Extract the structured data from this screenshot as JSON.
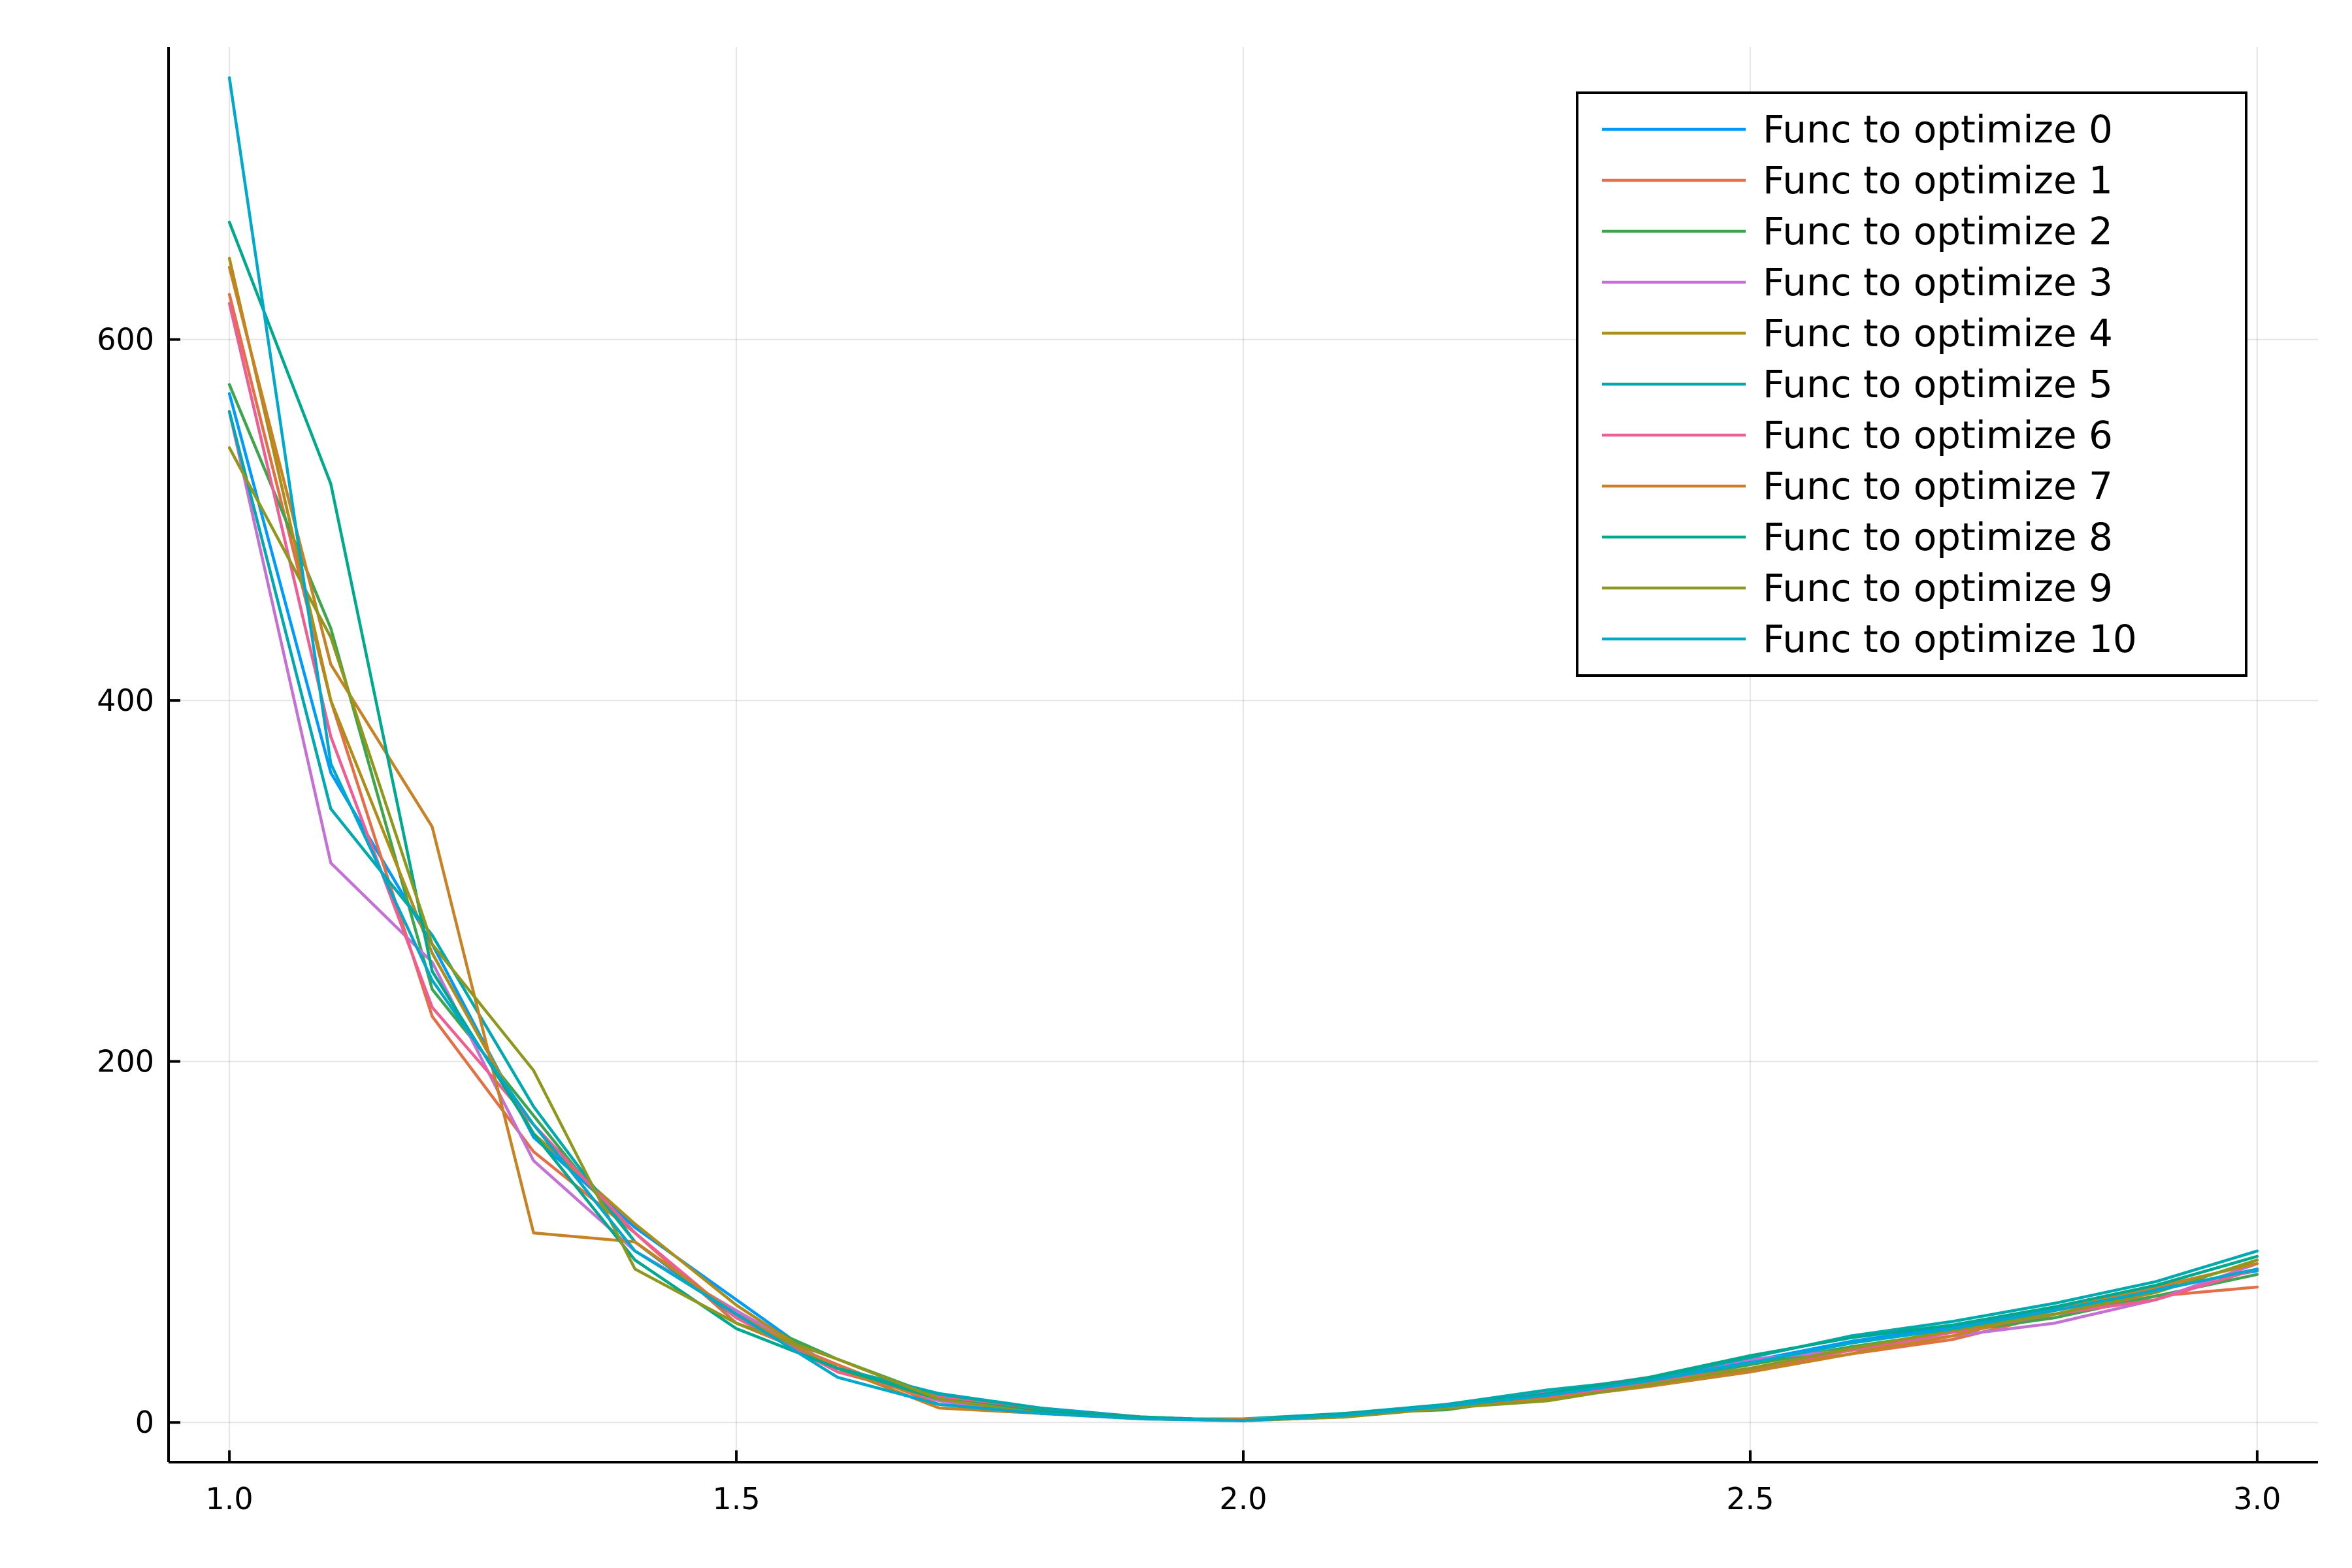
{
  "chart_data": {
    "type": "line",
    "title": "",
    "xlabel": "",
    "ylabel": "",
    "xlim": [
      0.94,
      3.06
    ],
    "ylim": [
      -22,
      762
    ],
    "x_ticks": [
      1.0,
      1.5,
      2.0,
      2.5,
      3.0
    ],
    "x_tick_labels": [
      "1.0",
      "1.5",
      "2.0",
      "2.5",
      "3.0"
    ],
    "y_ticks": [
      0,
      200,
      400,
      600
    ],
    "y_tick_labels": [
      "0",
      "200",
      "400",
      "600"
    ],
    "grid": true,
    "legend_position": "top-right",
    "x": [
      1.0,
      1.1,
      1.2,
      1.3,
      1.4,
      1.5,
      1.6,
      1.7,
      1.8,
      1.9,
      2.0,
      2.1,
      2.2,
      2.3,
      2.4,
      2.5,
      2.6,
      2.7,
      2.8,
      2.9,
      3.0
    ],
    "series": [
      {
        "name": "Func to optimize 0",
        "color": "#009AFA",
        "values": [
          570,
          360,
          265,
          158,
          108,
          68,
          28,
          15,
          8,
          3,
          1,
          3,
          9,
          16,
          24,
          34,
          45,
          53,
          63,
          74,
          84
        ]
      },
      {
        "name": "Func to optimize 1",
        "color": "#E36F47",
        "values": [
          625,
          400,
          225,
          150,
          105,
          55,
          32,
          10,
          6,
          2,
          2,
          4,
          8,
          14,
          21,
          29,
          38,
          46,
          60,
          70,
          75
        ]
      },
      {
        "name": "Func to optimize 2",
        "color": "#3EA44E",
        "values": [
          575,
          440,
          240,
          170,
          100,
          60,
          35,
          14,
          7,
          3,
          1,
          5,
          7,
          15,
          22,
          32,
          42,
          50,
          58,
          70,
          82
        ]
      },
      {
        "name": "Func to optimize 3",
        "color": "#C371D2",
        "values": [
          560,
          310,
          255,
          145,
          95,
          62,
          30,
          12,
          5,
          3,
          1,
          4,
          10,
          17,
          25,
          35,
          40,
          48,
          55,
          68,
          88
        ]
      },
      {
        "name": "Func to optimize 4",
        "color": "#AC8E18",
        "values": [
          645,
          400,
          260,
          160,
          110,
          65,
          28,
          13,
          6,
          2,
          1,
          3,
          8,
          13,
          22,
          30,
          38,
          52,
          62,
          72,
          90
        ]
      },
      {
        "name": "Func to optimize 5",
        "color": "#00A9AD",
        "values": [
          560,
          340,
          270,
          175,
          100,
          58,
          30,
          16,
          8,
          2,
          2,
          5,
          10,
          18,
          24,
          36,
          48,
          56,
          66,
          78,
          95
        ]
      },
      {
        "name": "Func to optimize 6",
        "color": "#ED5E93",
        "values": [
          620,
          380,
          230,
          165,
          105,
          58,
          28,
          14,
          6,
          3,
          1,
          4,
          9,
          14,
          22,
          30,
          40,
          50,
          60,
          68,
          85
        ]
      },
      {
        "name": "Func to optimize 7",
        "color": "#C68225",
        "values": [
          640,
          420,
          330,
          105,
          100,
          60,
          30,
          8,
          5,
          2,
          2,
          3,
          8,
          13,
          20,
          28,
          38,
          48,
          62,
          75,
          88
        ]
      },
      {
        "name": "Func to optimize 8",
        "color": "#00A98D",
        "values": [
          665,
          520,
          250,
          160,
          90,
          52,
          30,
          13,
          6,
          3,
          1,
          5,
          9,
          16,
          25,
          37,
          47,
          54,
          64,
          76,
          92
        ]
      },
      {
        "name": "Func to optimize 9",
        "color": "#8E971E",
        "values": [
          540,
          435,
          265,
          195,
          85,
          55,
          35,
          13,
          5,
          2,
          1,
          3,
          8,
          12,
          21,
          30,
          41,
          51,
          60,
          72,
          90
        ]
      },
      {
        "name": "Func to optimize 10",
        "color": "#00A8CB",
        "values": [
          745,
          365,
          245,
          165,
          95,
          60,
          25,
          10,
          5,
          2,
          1,
          4,
          9,
          15,
          23,
          33,
          44,
          52,
          62,
          73,
          85
        ]
      }
    ]
  }
}
